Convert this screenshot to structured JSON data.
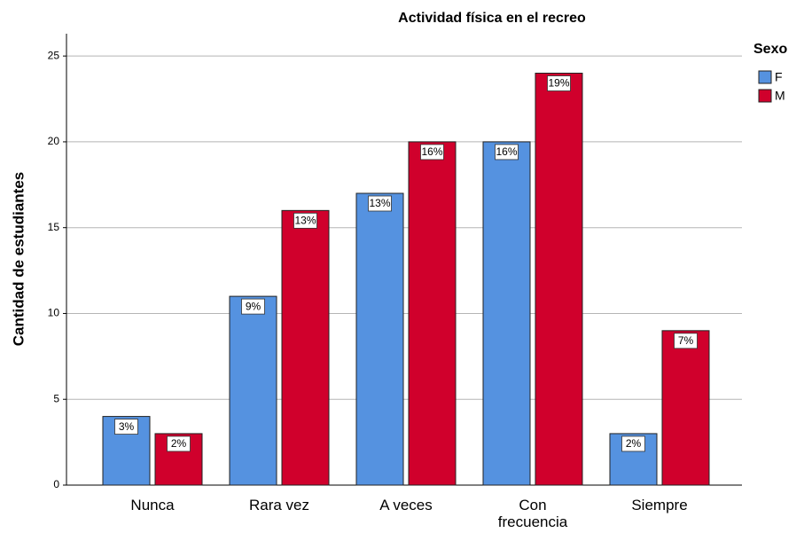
{
  "chart_data": {
    "type": "bar",
    "title": "Actividad física en el recreo",
    "y_label": "Cantidad de estudiantes",
    "legend_title": "Sexo",
    "legend": "right",
    "categories": [
      "Nunca",
      "Rara vez",
      "A veces",
      "Con frecuencia",
      "Siempre"
    ],
    "series": [
      {
        "name": "F",
        "color": "#5592e0",
        "values": [
          4,
          11,
          17,
          20,
          3
        ],
        "percent_labels": [
          "3%",
          "9%",
          "13%",
          "16%",
          "2%"
        ]
      },
      {
        "name": "M",
        "color": "#d0002c",
        "values": [
          3,
          16,
          20,
          24,
          9
        ],
        "percent_labels": [
          "2%",
          "13%",
          "16%",
          "19%",
          "7%"
        ]
      }
    ],
    "ylim": [
      0,
      26.3
    ],
    "yticks": [
      0,
      5,
      10,
      15,
      20,
      25
    ],
    "grid": true
  }
}
